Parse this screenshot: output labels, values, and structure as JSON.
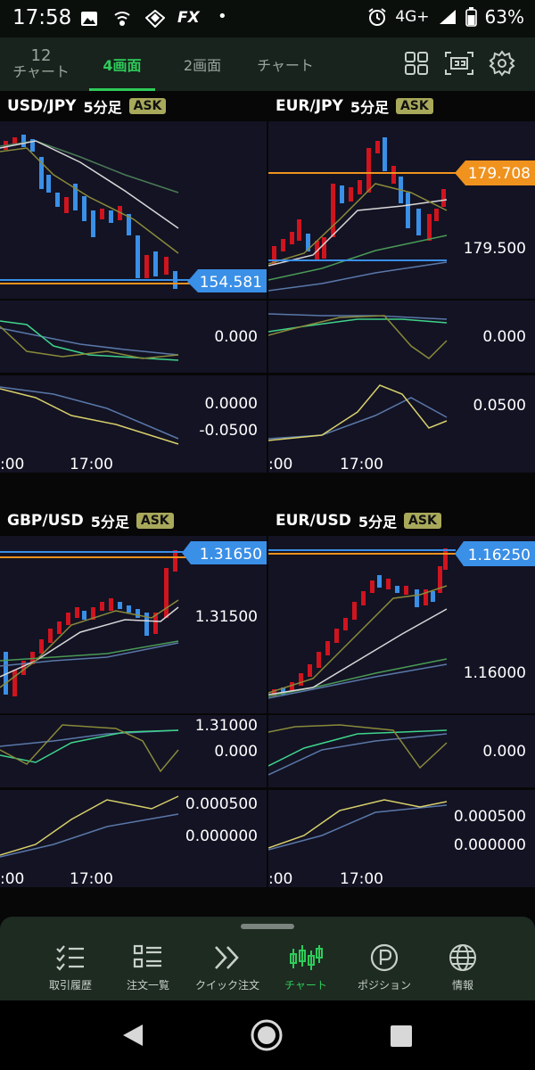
{
  "status_bar": {
    "time": "17:58",
    "fx_label": "FX",
    "dot": "•",
    "network": "4G+",
    "battery": "63%"
  },
  "top_tabs": {
    "count_number": "12",
    "count_label": "チャート",
    "tab_4": "4画面",
    "tab_2": "2画面",
    "tab_chart": "チャート"
  },
  "colors": {
    "accent": "#2ecb5a",
    "bull": "#d0141e",
    "bear": "#3a8fe6",
    "ask_badge": "#a8a95a",
    "orange_line": "#f0921e",
    "blue_price": "#3a8fe6"
  },
  "panels": [
    {
      "pair": "USD/JPY",
      "timeframe": "5分足",
      "ask": "ASK",
      "price_tag": "154.581",
      "price_tag_color": "#3a8fe6",
      "right_labels": [],
      "indicator1_label": "0.000",
      "indicator2_labels": [
        "0.0000",
        "-0.0500"
      ],
      "time_labels": [
        ":00",
        "17:00"
      ]
    },
    {
      "pair": "EUR/JPY",
      "timeframe": "5分足",
      "ask": "ASK",
      "price_tag": "179.708",
      "price_tag_color": "#f0921e",
      "right_labels": [
        "179.500"
      ],
      "indicator1_label": "0.000",
      "indicator2_labels": [
        "0.0500"
      ],
      "time_labels": [
        ":00",
        "17:00"
      ]
    },
    {
      "pair": "GBP/USD",
      "timeframe": "5分足",
      "ask": "ASK",
      "price_tag": "1.31650",
      "price_tag_color": "#3a8fe6",
      "right_labels": [
        "1.31500",
        "1.31000"
      ],
      "indicator1_label": "0.000",
      "indicator2_labels": [
        "0.000500",
        "0.000000"
      ],
      "time_labels": [
        ":00",
        "17:00"
      ]
    },
    {
      "pair": "EUR/USD",
      "timeframe": "5分足",
      "ask": "ASK",
      "price_tag": "1.16250",
      "price_tag_color": "#3a8fe6",
      "right_labels": [
        "1.16000"
      ],
      "indicator1_label": "0.000",
      "indicator2_labels": [
        "0.000500",
        "0.000000"
      ],
      "time_labels": [
        ":00",
        "17:00"
      ]
    }
  ],
  "bottom_nav": [
    {
      "label": "取引履歴",
      "icon": "trade-history-icon"
    },
    {
      "label": "注文一覧",
      "icon": "order-list-icon"
    },
    {
      "label": "クイック注文",
      "icon": "quick-order-icon"
    },
    {
      "label": "チャート",
      "icon": "candlestick-icon"
    },
    {
      "label": "ポジション",
      "icon": "position-icon"
    },
    {
      "label": "情報",
      "icon": "globe-icon"
    }
  ]
}
